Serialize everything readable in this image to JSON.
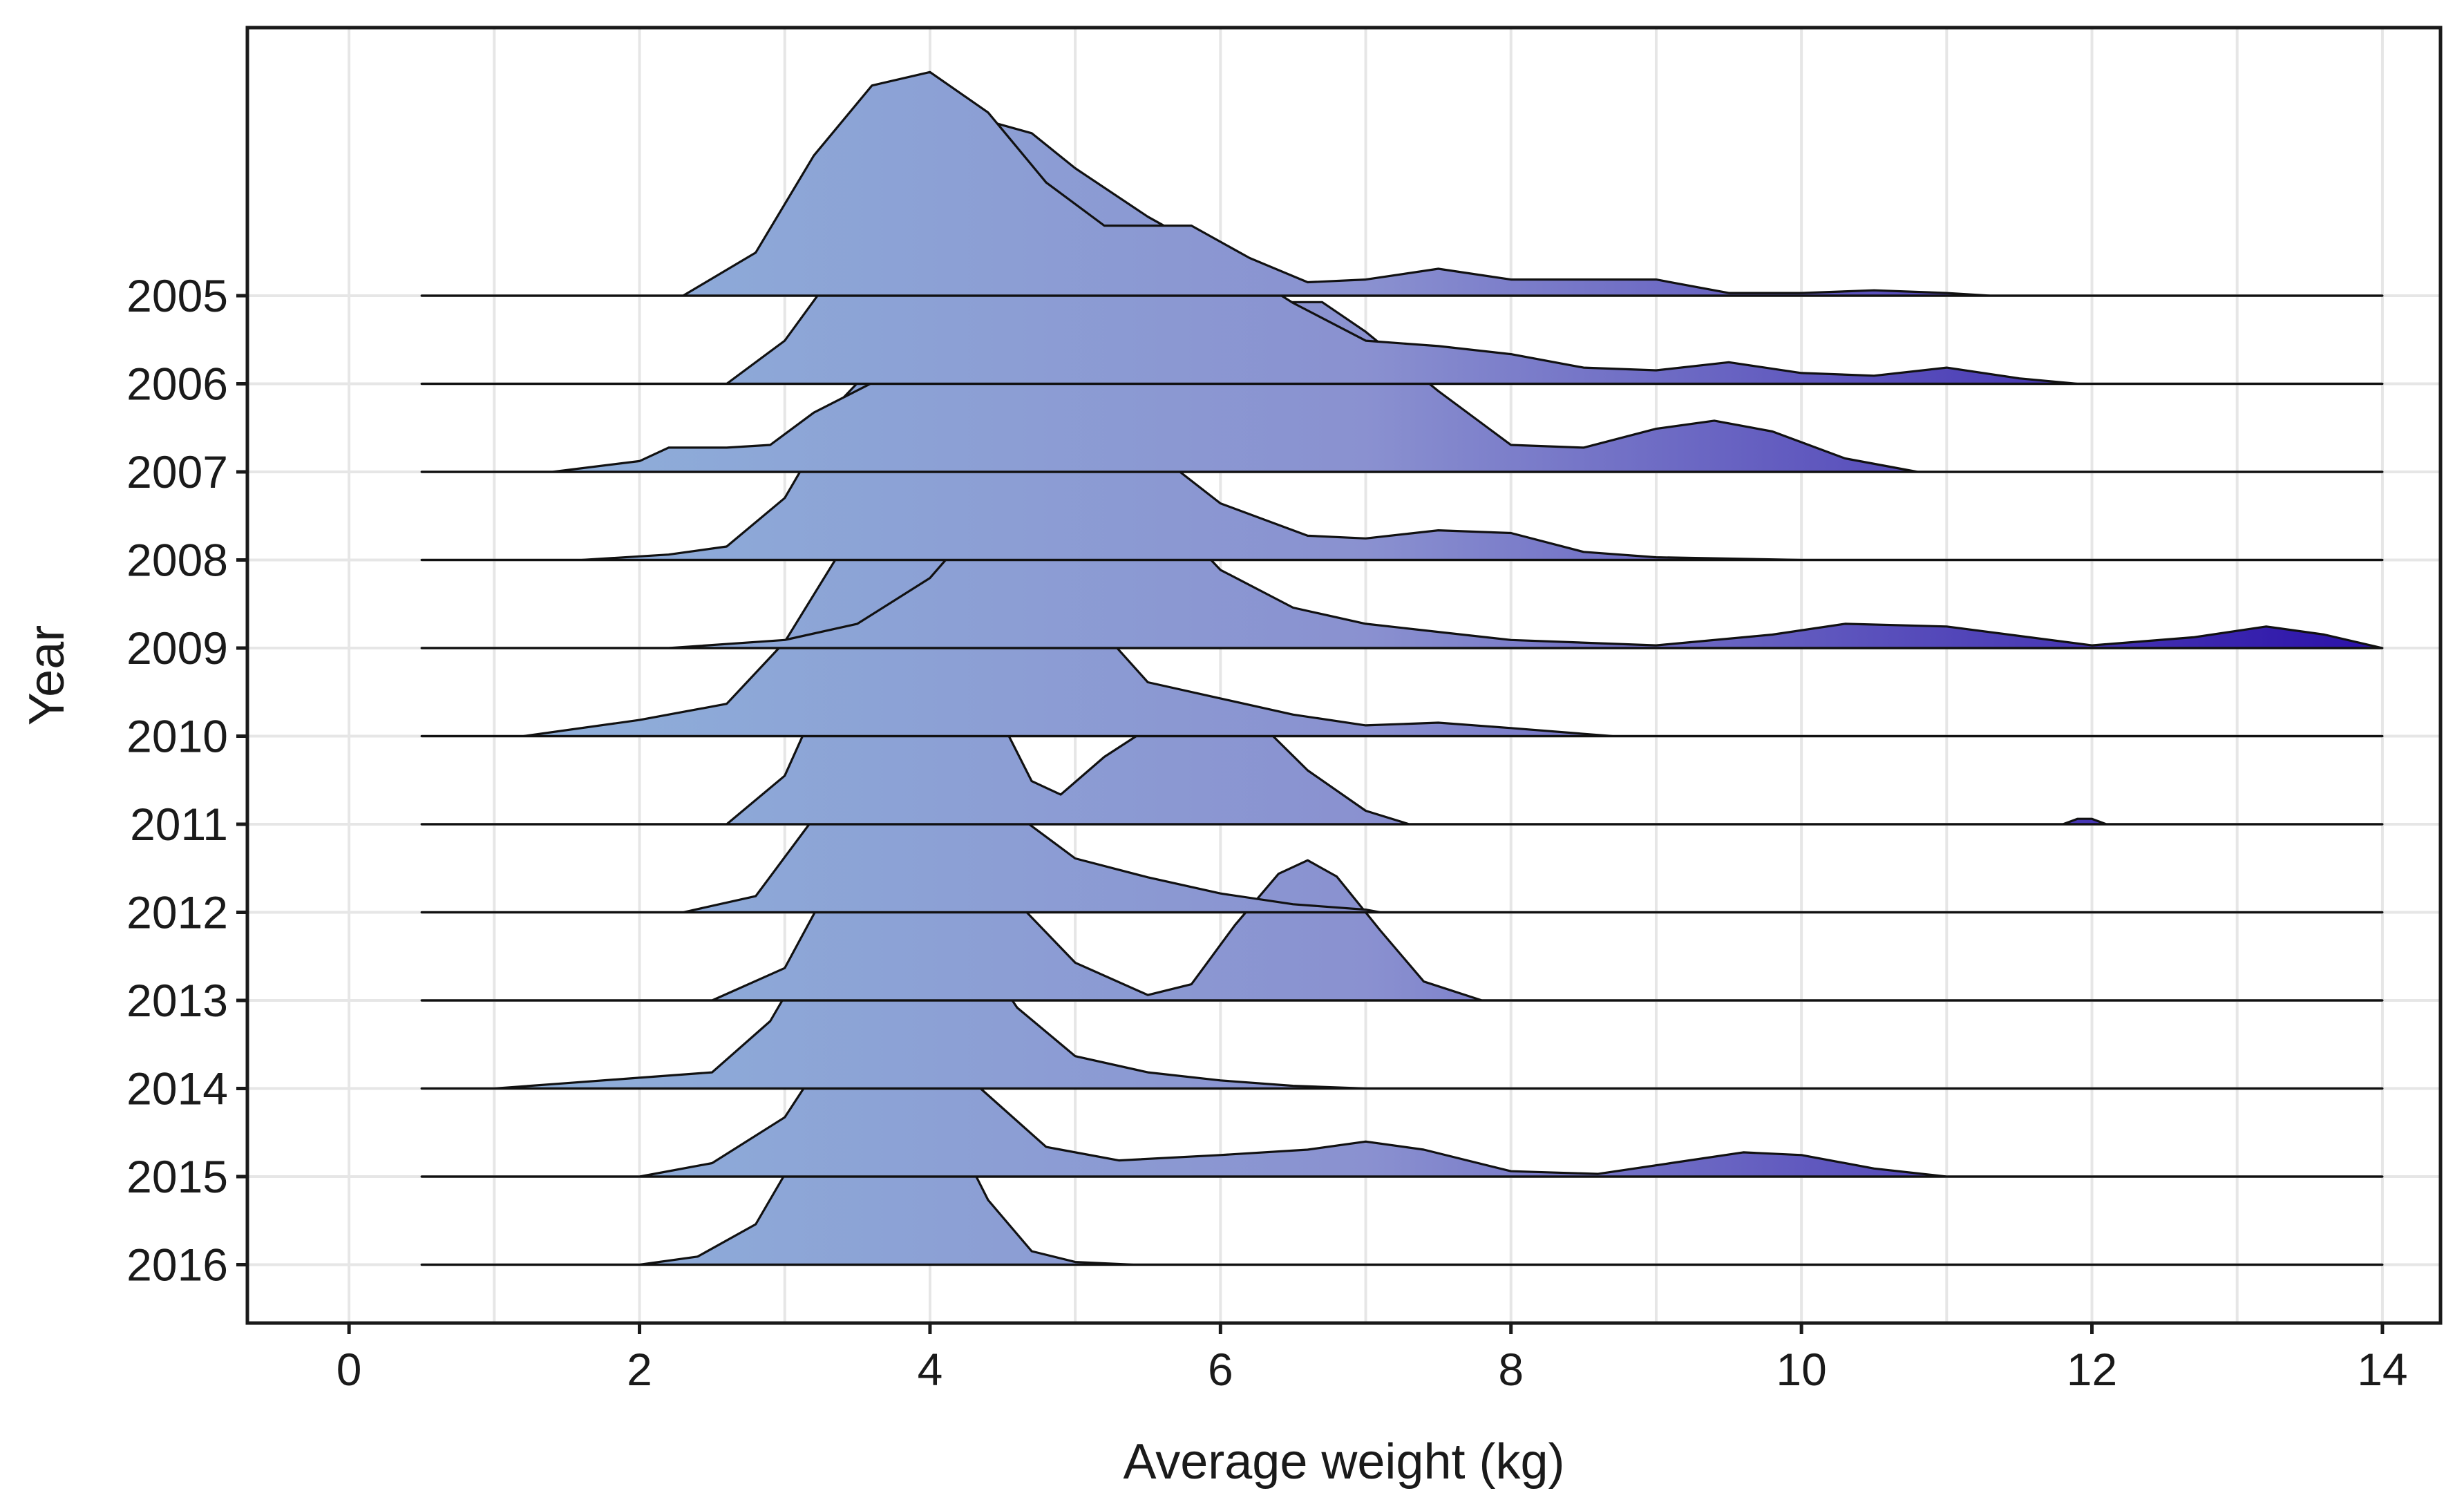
{
  "chart_data": {
    "type": "ridgeline",
    "title": "",
    "xlabel": "Average weight (kg)",
    "ylabel": "Year",
    "xlim": [
      -0.7,
      14.4
    ],
    "x_ticks": [
      0,
      2,
      4,
      6,
      8,
      10,
      12,
      14
    ],
    "x_tick_labels": [
      "0",
      "2",
      "4",
      "6",
      "8",
      "10",
      "12",
      "14"
    ],
    "grid": true,
    "fill_gradient": {
      "low": "#8fb6dc",
      "mid": "#8a91d0",
      "high": "#2a10a8",
      "domain": [
        0,
        14
      ]
    },
    "series": [
      {
        "name": "2016",
        "x": [
          0.5,
          2.0,
          2.4,
          2.8,
          3.2,
          3.45,
          3.65,
          3.85,
          4.1,
          4.4,
          4.7,
          5.0,
          5.4,
          14.0
        ],
        "y": [
          0,
          0,
          0.03,
          0.15,
          0.52,
          0.86,
          1.0,
          0.88,
          0.56,
          0.24,
          0.05,
          0.01,
          0,
          0
        ]
      },
      {
        "name": "2015",
        "x": [
          0.5,
          2.0,
          2.5,
          3.0,
          3.4,
          3.7,
          3.95,
          4.3,
          4.8,
          5.3,
          6.0,
          6.6,
          7.0,
          7.4,
          8.0,
          8.6,
          9.1,
          9.6,
          10.0,
          10.5,
          11.0,
          14.0
        ],
        "y": [
          0,
          0,
          0.05,
          0.22,
          0.55,
          0.78,
          0.68,
          0.35,
          0.11,
          0.06,
          0.08,
          0.1,
          0.13,
          0.1,
          0.02,
          0.01,
          0.05,
          0.09,
          0.08,
          0.03,
          0,
          0
        ]
      },
      {
        "name": "2014",
        "x": [
          0.5,
          1.0,
          1.5,
          2.0,
          2.5,
          2.9,
          3.3,
          3.6,
          3.75,
          3.9,
          4.2,
          4.6,
          5.0,
          5.5,
          6.0,
          6.5,
          7.0,
          14.0
        ],
        "y": [
          0,
          0,
          0.02,
          0.04,
          0.06,
          0.25,
          0.62,
          0.9,
          0.98,
          0.93,
          0.62,
          0.3,
          0.12,
          0.06,
          0.03,
          0.01,
          0,
          0
        ]
      },
      {
        "name": "2013",
        "x": [
          0.5,
          2.5,
          3.0,
          3.3,
          3.6,
          3.85,
          4.1,
          4.5,
          5.0,
          5.5,
          5.8,
          6.1,
          6.4,
          6.6,
          6.8,
          7.1,
          7.4,
          7.8,
          14.0
        ],
        "y": [
          0,
          0,
          0.12,
          0.42,
          0.77,
          0.84,
          0.72,
          0.42,
          0.14,
          0.02,
          0.06,
          0.28,
          0.47,
          0.52,
          0.46,
          0.26,
          0.07,
          0,
          0
        ]
      },
      {
        "name": "2012",
        "x": [
          0.5,
          2.3,
          2.8,
          3.2,
          3.5,
          3.75,
          4.0,
          4.3,
          4.6,
          5.0,
          5.5,
          6.0,
          6.5,
          7.0,
          7.1,
          14.0
        ],
        "y": [
          0,
          0,
          0.06,
          0.35,
          0.7,
          0.89,
          0.84,
          0.6,
          0.36,
          0.2,
          0.13,
          0.07,
          0.03,
          0.01,
          0,
          0
        ]
      },
      {
        "name": "2011",
        "x": [
          0.5,
          2.6,
          3.0,
          3.35,
          3.6,
          3.85,
          4.1,
          4.4,
          4.7,
          4.9,
          5.2,
          5.6,
          6.0,
          6.3,
          6.6,
          7.0,
          7.3,
          11.8,
          11.9,
          12.0,
          12.1,
          14.0
        ],
        "y": [
          0,
          0,
          0.18,
          0.6,
          0.92,
          1.0,
          0.86,
          0.48,
          0.16,
          0.11,
          0.25,
          0.39,
          0.42,
          0.36,
          0.2,
          0.05,
          0,
          0,
          0.02,
          0.02,
          0,
          0
        ]
      },
      {
        "name": "2010",
        "x": [
          0.5,
          1.2,
          2.0,
          2.6,
          3.0,
          3.4,
          3.7,
          3.95,
          4.3,
          4.7,
          5.2,
          5.5,
          6.0,
          6.5,
          7.0,
          7.5,
          8.0,
          8.7,
          14.0
        ],
        "y": [
          0,
          0,
          0.06,
          0.12,
          0.35,
          0.7,
          0.9,
          0.98,
          0.91,
          0.71,
          0.38,
          0.2,
          0.14,
          0.08,
          0.04,
          0.05,
          0.03,
          0,
          0
        ]
      },
      {
        "name": "2009",
        "x": [
          0.5,
          2.2,
          3.0,
          3.5,
          4.0,
          4.5,
          4.8,
          5.0,
          5.3,
          5.7,
          6.0,
          6.5,
          7.0,
          8.0,
          9.0,
          9.8,
          10.3,
          11.0,
          12.0,
          12.7,
          13.2,
          13.6,
          14.0
        ],
        "y": [
          0,
          0,
          0.03,
          0.09,
          0.26,
          0.57,
          0.77,
          0.81,
          0.73,
          0.46,
          0.29,
          0.15,
          0.09,
          0.03,
          0.01,
          0.05,
          0.09,
          0.08,
          0.01,
          0.04,
          0.08,
          0.05,
          0
        ]
      },
      {
        "name": "2008",
        "x": [
          0.5,
          1.6,
          2.2,
          2.6,
          3.0,
          3.4,
          3.7,
          4.0,
          4.5,
          5.0,
          5.5,
          6.0,
          6.6,
          7.0,
          7.5,
          8.0,
          8.5,
          9.0,
          10.0,
          10.2,
          14.0
        ],
        "y": [
          0,
          0,
          0.02,
          0.05,
          0.23,
          0.6,
          0.77,
          0.8,
          0.75,
          0.6,
          0.42,
          0.21,
          0.09,
          0.08,
          0.11,
          0.1,
          0.03,
          0.01,
          0,
          0,
          0
        ]
      },
      {
        "name": "2007",
        "x": [
          0.5,
          1.4,
          2.0,
          2.2,
          2.6,
          2.9,
          3.2,
          3.6,
          4.0,
          4.5,
          5.0,
          5.6,
          6.0,
          6.4,
          6.7,
          7.0,
          7.5,
          8.0,
          8.5,
          9.0,
          9.4,
          9.8,
          10.3,
          10.8,
          14.0
        ],
        "y": [
          0,
          0,
          0.04,
          0.09,
          0.09,
          0.1,
          0.22,
          0.33,
          0.44,
          0.6,
          0.52,
          0.53,
          0.58,
          0.63,
          0.63,
          0.52,
          0.3,
          0.1,
          0.09,
          0.16,
          0.19,
          0.15,
          0.05,
          0,
          0
        ]
      },
      {
        "name": "2006",
        "x": [
          0.5,
          2.6,
          3.0,
          3.5,
          4.0,
          4.3,
          4.7,
          5.0,
          5.5,
          6.0,
          6.5,
          7.0,
          7.5,
          8.0,
          8.5,
          9.0,
          9.5,
          10.0,
          10.5,
          11.0,
          11.5,
          11.9,
          14.0
        ],
        "y": [
          0,
          0,
          0.16,
          0.53,
          0.9,
          0.99,
          0.93,
          0.8,
          0.62,
          0.47,
          0.3,
          0.16,
          0.14,
          0.11,
          0.06,
          0.05,
          0.08,
          0.04,
          0.03,
          0.06,
          0.02,
          0,
          0
        ]
      },
      {
        "name": "2005",
        "x": [
          0.5,
          2.3,
          2.8,
          3.2,
          3.6,
          4.0,
          4.4,
          4.8,
          5.2,
          5.5,
          5.8,
          6.2,
          6.6,
          7.0,
          7.5,
          8.0,
          8.5,
          9.0,
          9.5,
          10.0,
          10.5,
          11.0,
          11.3,
          14.0
        ],
        "y": [
          0,
          0,
          0.16,
          0.52,
          0.78,
          0.83,
          0.68,
          0.42,
          0.26,
          0.26,
          0.26,
          0.14,
          0.05,
          0.06,
          0.1,
          0.06,
          0.06,
          0.06,
          0.01,
          0.01,
          0.02,
          0.01,
          0,
          0
        ]
      }
    ]
  }
}
